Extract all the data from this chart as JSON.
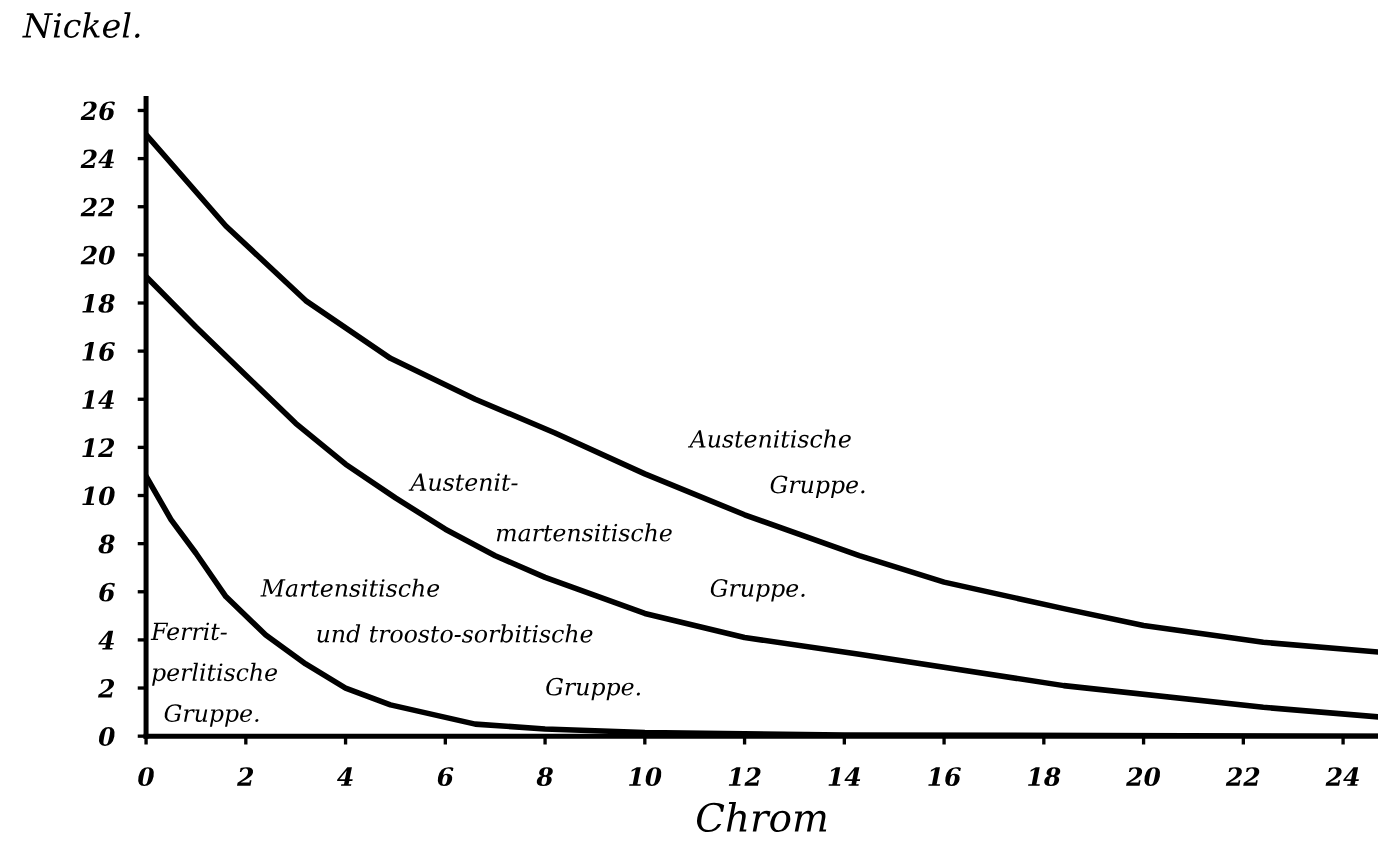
{
  "chart_data": {
    "type": "line",
    "xlabel": "Chrom",
    "ylabel": "Nickel.",
    "xlim": [
      0,
      24.7
    ],
    "ylim": [
      0,
      26.5
    ],
    "xticks": [
      0,
      2,
      4,
      6,
      8,
      10,
      12,
      14,
      16,
      18,
      20,
      22,
      24
    ],
    "yticks": [
      0,
      2,
      4,
      6,
      8,
      10,
      12,
      14,
      16,
      18,
      20,
      22,
      24,
      26
    ],
    "grid": false,
    "marker": "none",
    "line_style": "solid",
    "series": [
      {
        "color": "#000000",
        "x": [
          0,
          1.6,
          3.2,
          4.9,
          6.6,
          8.2,
          10,
          12,
          14.3,
          16,
          18.4,
          20,
          22.4,
          24.7
        ],
        "values": [
          25,
          21.2,
          18.1,
          15.7,
          14.0,
          12.6,
          10.9,
          9.2,
          7.5,
          6.4,
          5.3,
          4.6,
          3.9,
          3.5
        ]
      },
      {
        "color": "#000000",
        "x": [
          0,
          1,
          2,
          3,
          4,
          5,
          6,
          7,
          8,
          10,
          12,
          14.3,
          18.4,
          22.4,
          24.7
        ],
        "values": [
          19.1,
          17.0,
          15.0,
          13.0,
          11.3,
          9.9,
          8.6,
          7.5,
          6.6,
          5.1,
          4.1,
          3.4,
          2.1,
          1.2,
          0.8
        ]
      },
      {
        "color": "#000000",
        "x": [
          0,
          0.5,
          1,
          1.6,
          2.4,
          3.2,
          4,
          4.9,
          6.6,
          8,
          10,
          14,
          24.7
        ],
        "values": [
          10.8,
          9.0,
          7.6,
          5.8,
          4.2,
          3.0,
          2.0,
          1.3,
          0.5,
          0.3,
          0.15,
          0.05,
          0
        ]
      }
    ],
    "annotations": [
      "Austenitische\nGruppe.",
      "Austenit-\nmartensitische\nGruppe.",
      "Martensitische\nund troosto-sorbitische\nGruppe.",
      "Ferrit-\nperlitische\nGruppe."
    ]
  }
}
